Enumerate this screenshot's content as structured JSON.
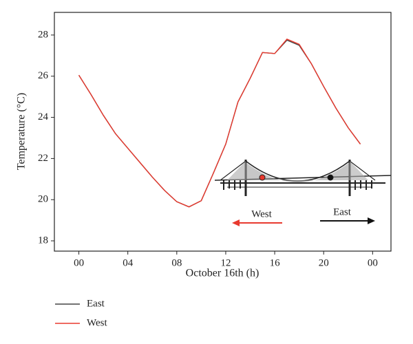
{
  "chart_data": {
    "type": "line",
    "xlabel": "October 16th (h)",
    "ylabel": "Temperature (°C)",
    "x": [
      0,
      1,
      2,
      3,
      4,
      5,
      6,
      7,
      8,
      9,
      10,
      11,
      12,
      13,
      14,
      15,
      16,
      17,
      18,
      19,
      20,
      21,
      22,
      23
    ],
    "series": [
      {
        "name": "East",
        "color": "#444444",
        "values": [
          26.05,
          25.1,
          24.1,
          23.2,
          22.5,
          21.8,
          21.1,
          20.45,
          19.9,
          19.65,
          19.95,
          21.3,
          22.7,
          24.75,
          25.9,
          27.15,
          27.1,
          27.75,
          27.5,
          26.6,
          25.5,
          24.45,
          23.5,
          22.7
        ]
      },
      {
        "name": "West",
        "color": "#e8392e",
        "values": [
          26.05,
          25.1,
          24.1,
          23.2,
          22.5,
          21.8,
          21.1,
          20.45,
          19.9,
          19.65,
          19.95,
          21.3,
          22.7,
          24.75,
          25.9,
          27.15,
          27.1,
          27.8,
          27.55,
          26.6,
          25.5,
          24.45,
          23.5,
          22.7
        ]
      }
    ],
    "xlim": [
      -2,
      25.5
    ],
    "ylim": [
      17.5,
      29.1
    ],
    "xticks": [
      {
        "value": 0,
        "label": "00"
      },
      {
        "value": 4,
        "label": "04"
      },
      {
        "value": 8,
        "label": "08"
      },
      12,
      16,
      20,
      {
        "value": 24,
        "label": "00"
      }
    ],
    "yticks": [
      18,
      20,
      22,
      24,
      26,
      28
    ],
    "annotations": [
      "West",
      "East"
    ],
    "legend": "bottom-left"
  }
}
